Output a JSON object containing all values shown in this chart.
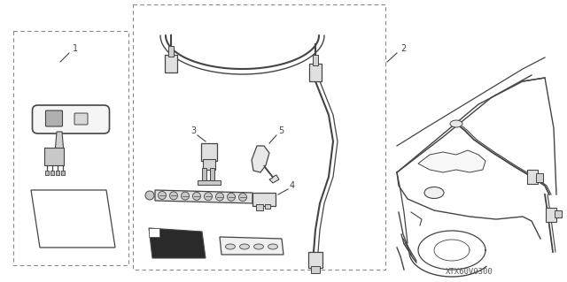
{
  "bg_color": "#ffffff",
  "line_color": "#444444",
  "watermark": "XTX60V0300",
  "fig_width": 6.4,
  "fig_height": 3.19
}
